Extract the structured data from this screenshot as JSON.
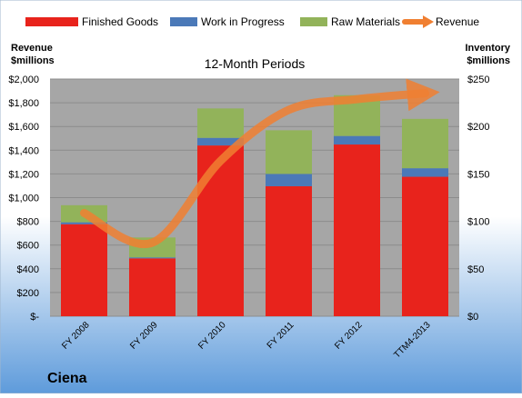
{
  "chart_data": {
    "type": "bar",
    "subtype": "stacked-bar-with-line",
    "title": "12-Month Periods",
    "company": "Ciena",
    "categories": [
      "FY 2008",
      "FY 2009",
      "FY 2010",
      "FY 2011",
      "FY 2012",
      "TTM4-2013"
    ],
    "series": [
      {
        "name": "Finished Goods",
        "axis": "right",
        "color": "#E8231C",
        "values": [
          97,
          61,
          180,
          137,
          181,
          147
        ]
      },
      {
        "name": "Work in Progress",
        "axis": "right",
        "color": "#4B79B8",
        "values": [
          2,
          1,
          8,
          13,
          9,
          9
        ]
      },
      {
        "name": "Raw Materials",
        "axis": "right",
        "color": "#92B35A",
        "values": [
          18,
          21,
          31,
          46,
          43,
          52
        ]
      }
    ],
    "line_series": {
      "name": "Revenue",
      "axis": "left",
      "color": "#F07F31",
      "values": [
        870,
        620,
        1310,
        1740,
        1830,
        1880
      ]
    },
    "left_axis": {
      "label_line1": "Revenue",
      "label_line2": "$millions",
      "ylim": [
        0,
        2000
      ],
      "ticks": [
        0,
        200,
        400,
        600,
        800,
        1000,
        1200,
        1400,
        1600,
        1800,
        2000
      ],
      "tick_labels": [
        "$-",
        "$200",
        "$400",
        "$600",
        "$800",
        "$1,000",
        "$1,200",
        "$1,400",
        "$1,600",
        "$1,800",
        "$2,000"
      ]
    },
    "right_axis": {
      "label_line1": "Inventory",
      "label_line2": "$millions",
      "ylim": [
        0,
        250
      ],
      "ticks": [
        0,
        50,
        100,
        150,
        200,
        250
      ],
      "tick_labels": [
        "$0",
        "$50",
        "$100",
        "$150",
        "$200",
        "$250"
      ]
    },
    "legend_position": "top",
    "grid": true,
    "colors": {
      "plot_bg": "#A6A6A6",
      "gridline": "#8C8C8C",
      "bg_top": "#FFFFFF",
      "bg_bottom": "#5E9BDB"
    }
  }
}
